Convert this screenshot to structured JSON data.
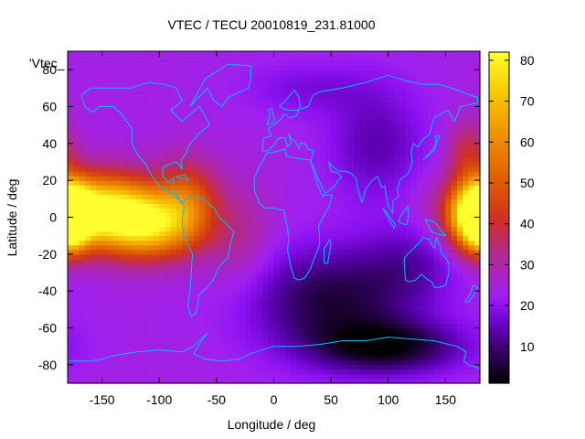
{
  "chart_data": {
    "type": "heatmap",
    "title": "VTEC / TECU 20010819_231.81000",
    "xlabel": "Longitude / deg",
    "ylabel": "Latitude / deg",
    "xlim": [
      -180,
      180
    ],
    "ylim": [
      -90,
      90
    ],
    "x_ticks": [
      {
        "value": -150,
        "label": "-150"
      },
      {
        "value": -100,
        "label": "-100"
      },
      {
        "value": -50,
        "label": "-50"
      },
      {
        "value": 0,
        "label": "0"
      },
      {
        "value": 50,
        "label": "50"
      },
      {
        "value": 100,
        "label": "100"
      },
      {
        "value": 150,
        "label": "150"
      }
    ],
    "y_ticks": [
      {
        "value": -80,
        "label": "-80"
      },
      {
        "value": -60,
        "label": "-60"
      },
      {
        "value": -40,
        "label": "-40"
      },
      {
        "value": -20,
        "label": "-20"
      },
      {
        "value": 0,
        "label": "0"
      },
      {
        "value": 20,
        "label": "20"
      },
      {
        "value": 40,
        "label": "40"
      },
      {
        "value": 60,
        "label": "60"
      },
      {
        "value": 80,
        "label": "80"
      }
    ],
    "colorbar": {
      "range": [
        1,
        82
      ],
      "ticks": [
        {
          "value": 10,
          "label": "10"
        },
        {
          "value": 20,
          "label": "20"
        },
        {
          "value": 30,
          "label": "30"
        },
        {
          "value": 40,
          "label": "40"
        },
        {
          "value": 50,
          "label": "50"
        },
        {
          "value": 60,
          "label": "60"
        },
        {
          "value": 70,
          "label": "70"
        },
        {
          "value": 80,
          "label": "80"
        }
      ],
      "palette": [
        "#000000",
        "#2a0050",
        "#5a00b0",
        "#8a10f0",
        "#a020f0",
        "#b02898",
        "#d03020",
        "#e06000",
        "#f09000",
        "#f8c800",
        "#ffff30"
      ],
      "palette_stops": [
        0,
        0.08,
        0.16,
        0.23,
        0.27,
        0.38,
        0.5,
        0.62,
        0.75,
        0.88,
        1.0
      ]
    },
    "series_label": "'Vtec_",
    "field": {
      "description_of_features": "VTEC field; values in TECU",
      "background": 24,
      "features": [
        {
          "lon": -150,
          "lat": 5,
          "amplitude": 52,
          "sigma_lon": 35,
          "sigma_lat": 13
        },
        {
          "lon": -110,
          "lat": -5,
          "amplitude": 42,
          "sigma_lon": 30,
          "sigma_lat": 12
        },
        {
          "lon": -75,
          "lat": 10,
          "amplitude": 22,
          "sigma_lon": 18,
          "sigma_lat": 15
        },
        {
          "lon": 178,
          "lat": 0,
          "amplitude": 56,
          "sigma_lon": 16,
          "sigma_lat": 12
        },
        {
          "lon": -178,
          "lat": 0,
          "amplitude": 30,
          "sigma_lon": 10,
          "sigma_lat": 12
        },
        {
          "lon": 170,
          "lat": 35,
          "amplitude": 15,
          "sigma_lon": 12,
          "sigma_lat": 12
        },
        {
          "lon": 50,
          "lat": -45,
          "amplitude": -18,
          "sigma_lon": 50,
          "sigma_lat": 20
        },
        {
          "lon": 100,
          "lat": -70,
          "amplitude": -20,
          "sigma_lon": 45,
          "sigma_lat": 10
        },
        {
          "lon": 90,
          "lat": 40,
          "amplitude": -10,
          "sigma_lon": 30,
          "sigma_lat": 22
        },
        {
          "lon": 120,
          "lat": -25,
          "amplitude": -8,
          "sigma_lon": 30,
          "sigma_lat": 15
        },
        {
          "lon": -30,
          "lat": -10,
          "amplitude": 8,
          "sigma_lon": 20,
          "sigma_lat": 20
        },
        {
          "lon": 30,
          "lat": 70,
          "amplitude": -6,
          "sigma_lon": 40,
          "sigma_lat": 10
        }
      ]
    },
    "coastlines": "world coastlines (cyan overlay)",
    "coastline_color": "#00bfff",
    "grid": false,
    "legend": "top-left"
  }
}
